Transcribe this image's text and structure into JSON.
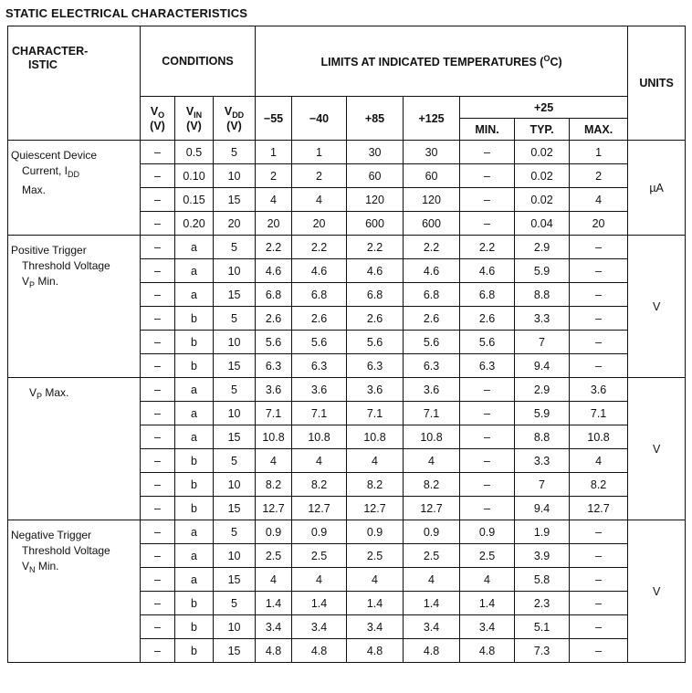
{
  "title": "STATIC ELECTRICAL CHARACTERISTICS",
  "header": {
    "characteristic": [
      "CHARACTER-",
      "ISTIC"
    ],
    "conditions": "CONDITIONS",
    "limits": {
      "text": "LIMITS AT INDICATED TEMPERATURES (",
      "sup": "O",
      "after": "C)"
    },
    "units": "UNITS",
    "condition_columns": [
      {
        "symbol": "V",
        "sub": "O",
        "unit": "(V)"
      },
      {
        "symbol": "V",
        "sub": "IN",
        "unit": "(V)"
      },
      {
        "symbol": "V",
        "sub": "DD",
        "unit": "(V)"
      }
    ],
    "temperatures": [
      "−55",
      "−40",
      "+85",
      "+125"
    ],
    "room_temperature": "+25",
    "room_columns": [
      "MIN.",
      "TYP.",
      "MAX."
    ]
  },
  "groups": [
    {
      "characteristic": [
        {
          "text": "Quiescent Device"
        },
        {
          "text": "Current, I",
          "sub": "DD"
        },
        {
          "text": "Max."
        }
      ],
      "units": "µA",
      "rows": [
        [
          "–",
          "0.5",
          "5",
          "1",
          "1",
          "30",
          "30",
          "–",
          "0.02",
          "1"
        ],
        [
          "–",
          "0.10",
          "10",
          "2",
          "2",
          "60",
          "60",
          "–",
          "0.02",
          "2"
        ],
        [
          "–",
          "0.15",
          "15",
          "4",
          "4",
          "120",
          "120",
          "–",
          "0.02",
          "4"
        ],
        [
          "–",
          "0.20",
          "20",
          "20",
          "20",
          "600",
          "600",
          "–",
          "0.04",
          "20"
        ]
      ]
    },
    {
      "characteristic": [
        {
          "text": "Positive Trigger"
        },
        {
          "text": "Threshold Voltage"
        },
        {
          "text": "V",
          "sub": "P",
          "after": " Min."
        }
      ],
      "units": "V",
      "rows": [
        [
          "–",
          "a",
          "5",
          "2.2",
          "2.2",
          "2.2",
          "2.2",
          "2.2",
          "2.9",
          "–"
        ],
        [
          "–",
          "a",
          "10",
          "4.6",
          "4.6",
          "4.6",
          "4.6",
          "4.6",
          "5.9",
          "–"
        ],
        [
          "–",
          "a",
          "15",
          "6.8",
          "6.8",
          "6.8",
          "6.8",
          "6.8",
          "8.8",
          "–"
        ],
        [
          "–",
          "b",
          "5",
          "2.6",
          "2.6",
          "2.6",
          "2.6",
          "2.6",
          "3.3",
          "–"
        ],
        [
          "–",
          "b",
          "10",
          "5.6",
          "5.6",
          "5.6",
          "5.6",
          "5.6",
          "7",
          "–"
        ],
        [
          "–",
          "b",
          "15",
          "6.3",
          "6.3",
          "6.3",
          "6.3",
          "6.3",
          "9.4",
          "–"
        ]
      ]
    },
    {
      "characteristic": [
        {
          "text": "V",
          "sub": "P",
          "after": " Max."
        }
      ],
      "units": "V",
      "rows": [
        [
          "–",
          "a",
          "5",
          "3.6",
          "3.6",
          "3.6",
          "3.6",
          "–",
          "2.9",
          "3.6"
        ],
        [
          "–",
          "a",
          "10",
          "7.1",
          "7.1",
          "7.1",
          "7.1",
          "–",
          "5.9",
          "7.1"
        ],
        [
          "–",
          "a",
          "15",
          "10.8",
          "10.8",
          "10.8",
          "10.8",
          "–",
          "8.8",
          "10.8"
        ],
        [
          "–",
          "b",
          "5",
          "4",
          "4",
          "4",
          "4",
          "–",
          "3.3",
          "4"
        ],
        [
          "–",
          "b",
          "10",
          "8.2",
          "8.2",
          "8.2",
          "8.2",
          "–",
          "7",
          "8.2"
        ],
        [
          "–",
          "b",
          "15",
          "12.7",
          "12.7",
          "12.7",
          "12.7",
          "–",
          "9.4",
          "12.7"
        ]
      ]
    },
    {
      "characteristic": [
        {
          "text": "Negative Trigger"
        },
        {
          "text": "Threshold Voltage"
        },
        {
          "text": "V",
          "sub": "N",
          "after": " Min."
        }
      ],
      "units": "V",
      "rows": [
        [
          "–",
          "a",
          "5",
          "0.9",
          "0.9",
          "0.9",
          "0.9",
          "0.9",
          "1.9",
          "–"
        ],
        [
          "–",
          "a",
          "10",
          "2.5",
          "2.5",
          "2.5",
          "2.5",
          "2.5",
          "3.9",
          "–"
        ],
        [
          "–",
          "a",
          "15",
          "4",
          "4",
          "4",
          "4",
          "4",
          "5.8",
          "–"
        ],
        [
          "–",
          "b",
          "5",
          "1.4",
          "1.4",
          "1.4",
          "1.4",
          "1.4",
          "2.3",
          "–"
        ],
        [
          "–",
          "b",
          "10",
          "3.4",
          "3.4",
          "3.4",
          "3.4",
          "3.4",
          "5.1",
          "–"
        ],
        [
          "–",
          "b",
          "15",
          "4.8",
          "4.8",
          "4.8",
          "4.8",
          "4.8",
          "7.3",
          "–"
        ]
      ]
    }
  ]
}
